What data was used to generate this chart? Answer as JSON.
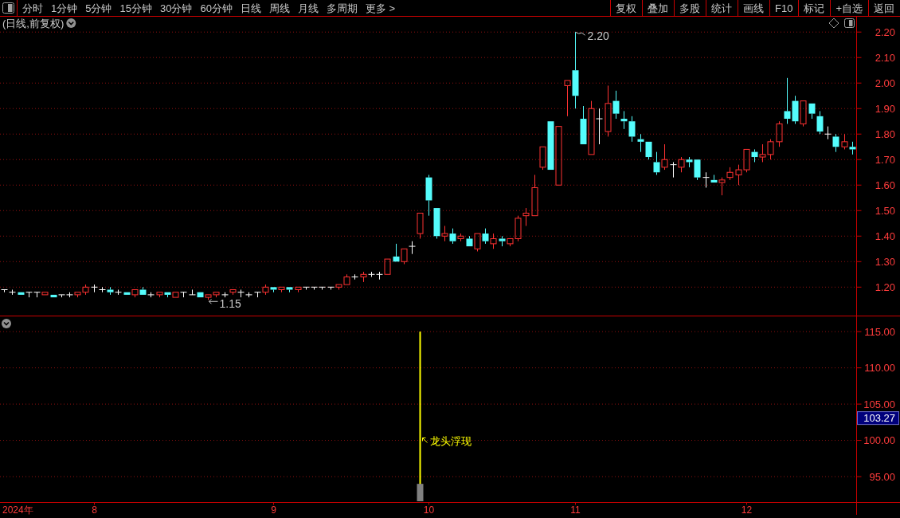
{
  "chart_data": [
    {
      "type": "other",
      "annotations": [
        "分时",
        "1分钟",
        "5分钟",
        "15分钟",
        "30分钟",
        "60分钟",
        "日线",
        "周线",
        "月线",
        "多周期",
        "更多 >"
      ]
    },
    {
      "type": "other",
      "annotations": [
        "复权",
        "叠加",
        "多股",
        "统计",
        "画线",
        "F10",
        "标记",
        "+自选",
        "返回"
      ]
    },
    {
      "type": "candlestick",
      "title": "(日线,前复权)",
      "categories": [
        null,
        null,
        null,
        null,
        null,
        null,
        null,
        null,
        null,
        null,
        null,
        "8",
        null,
        null,
        null,
        null,
        null,
        null,
        null,
        null,
        null,
        null,
        null,
        null,
        null,
        null,
        null,
        null,
        null,
        null,
        null,
        null,
        null,
        "9",
        null,
        null,
        null,
        null,
        null,
        null,
        null,
        null,
        null,
        null,
        null,
        null,
        null,
        null,
        null,
        null,
        null,
        null,
        "10",
        null,
        null,
        null,
        null,
        null,
        null,
        null,
        null,
        null,
        null,
        null,
        null,
        null,
        null,
        null,
        null,
        null,
        "11",
        null,
        null,
        null,
        null,
        null,
        null,
        null,
        null,
        null,
        null,
        null,
        null,
        null,
        null,
        null,
        null,
        null,
        null,
        null,
        null,
        "12",
        null,
        null,
        null,
        null,
        null,
        null,
        null,
        null,
        null,
        null,
        null,
        null,
        null
      ],
      "ohlc": [
        [
          1.19,
          1.19,
          1.18,
          1.19
        ],
        [
          1.18,
          1.19,
          1.17,
          1.18
        ],
        [
          1.18,
          1.18,
          1.17,
          1.17
        ],
        [
          1.18,
          1.18,
          1.16,
          1.18
        ],
        [
          1.18,
          1.18,
          1.16,
          1.18
        ],
        [
          1.17,
          1.18,
          1.17,
          1.18
        ],
        [
          1.17,
          1.17,
          1.16,
          1.16
        ],
        [
          1.17,
          1.17,
          1.16,
          1.17
        ],
        [
          1.17,
          1.18,
          1.16,
          1.17
        ],
        [
          1.17,
          1.18,
          1.16,
          1.18
        ],
        [
          1.18,
          1.21,
          1.17,
          1.2
        ],
        [
          1.2,
          1.21,
          1.18,
          1.2
        ],
        [
          1.19,
          1.2,
          1.18,
          1.19
        ],
        [
          1.19,
          1.2,
          1.17,
          1.18
        ],
        [
          1.18,
          1.19,
          1.17,
          1.18
        ],
        [
          1.18,
          1.18,
          1.17,
          1.17
        ],
        [
          1.17,
          1.19,
          1.16,
          1.19
        ],
        [
          1.19,
          1.2,
          1.17,
          1.17
        ],
        [
          1.17,
          1.18,
          1.16,
          1.17
        ],
        [
          1.17,
          1.18,
          1.16,
          1.18
        ],
        [
          1.18,
          1.18,
          1.16,
          1.17
        ],
        [
          1.16,
          1.18,
          1.16,
          1.18
        ],
        [
          1.18,
          1.18,
          1.16,
          1.18
        ],
        [
          1.17,
          1.19,
          1.17,
          1.17
        ],
        [
          1.18,
          1.18,
          1.16,
          1.16
        ],
        [
          1.16,
          1.17,
          1.15,
          1.17
        ],
        [
          1.17,
          1.18,
          1.16,
          1.18
        ],
        [
          1.17,
          1.18,
          1.16,
          1.17
        ],
        [
          1.18,
          1.19,
          1.17,
          1.19
        ],
        [
          1.18,
          1.19,
          1.16,
          1.18
        ],
        [
          1.17,
          1.18,
          1.16,
          1.17
        ],
        [
          1.18,
          1.18,
          1.16,
          1.18
        ],
        [
          1.18,
          1.21,
          1.17,
          1.2
        ],
        [
          1.2,
          1.2,
          1.18,
          1.19
        ],
        [
          1.19,
          1.2,
          1.18,
          1.2
        ],
        [
          1.2,
          1.2,
          1.18,
          1.19
        ],
        [
          1.19,
          1.2,
          1.18,
          1.2
        ],
        [
          1.2,
          1.2,
          1.19,
          1.2
        ],
        [
          1.2,
          1.2,
          1.19,
          1.2
        ],
        [
          1.2,
          1.2,
          1.19,
          1.2
        ],
        [
          1.2,
          1.2,
          1.19,
          1.2
        ],
        [
          1.2,
          1.21,
          1.19,
          1.21
        ],
        [
          1.21,
          1.25,
          1.21,
          1.24
        ],
        [
          1.24,
          1.25,
          1.23,
          1.24
        ],
        [
          1.24,
          1.26,
          1.22,
          1.25
        ],
        [
          1.25,
          1.26,
          1.24,
          1.25
        ],
        [
          1.25,
          1.26,
          1.23,
          1.25
        ],
        [
          1.25,
          1.31,
          1.25,
          1.31
        ],
        [
          1.32,
          1.37,
          1.3,
          1.3
        ],
        [
          1.3,
          1.35,
          1.29,
          1.35
        ],
        [
          1.36,
          1.38,
          1.33,
          1.36
        ],
        [
          1.41,
          1.49,
          1.39,
          1.49
        ],
        [
          1.63,
          1.64,
          1.48,
          1.54
        ],
        [
          1.51,
          1.51,
          1.39,
          1.4
        ],
        [
          1.4,
          1.44,
          1.38,
          1.41
        ],
        [
          1.41,
          1.43,
          1.37,
          1.38
        ],
        [
          1.39,
          1.41,
          1.38,
          1.4
        ],
        [
          1.39,
          1.4,
          1.36,
          1.36
        ],
        [
          1.35,
          1.41,
          1.34,
          1.41
        ],
        [
          1.41,
          1.43,
          1.37,
          1.38
        ],
        [
          1.37,
          1.41,
          1.35,
          1.39
        ],
        [
          1.39,
          1.4,
          1.36,
          1.38
        ],
        [
          1.37,
          1.39,
          1.36,
          1.39
        ],
        [
          1.39,
          1.48,
          1.38,
          1.47
        ],
        [
          1.48,
          1.51,
          1.44,
          1.49
        ],
        [
          1.48,
          1.64,
          1.48,
          1.59
        ],
        [
          1.67,
          1.75,
          1.66,
          1.75
        ],
        [
          1.85,
          1.85,
          1.66,
          1.66
        ],
        [
          1.6,
          1.83,
          1.6,
          1.83
        ],
        [
          1.99,
          2.01,
          1.87,
          2.01
        ],
        [
          2.05,
          2.2,
          1.9,
          1.95
        ],
        [
          1.86,
          1.91,
          1.76,
          1.76
        ],
        [
          1.72,
          1.93,
          1.72,
          1.9
        ],
        [
          1.86,
          1.9,
          1.76,
          1.86
        ],
        [
          1.81,
          1.99,
          1.79,
          1.92
        ],
        [
          1.93,
          1.97,
          1.86,
          1.88
        ],
        [
          1.86,
          1.89,
          1.82,
          1.85
        ],
        [
          1.85,
          1.87,
          1.77,
          1.79
        ],
        [
          1.78,
          1.8,
          1.73,
          1.77
        ],
        [
          1.77,
          1.77,
          1.7,
          1.71
        ],
        [
          1.69,
          1.73,
          1.64,
          1.65
        ],
        [
          1.67,
          1.76,
          1.66,
          1.7
        ],
        [
          1.68,
          1.69,
          1.63,
          1.68
        ],
        [
          1.67,
          1.71,
          1.65,
          1.7
        ],
        [
          1.7,
          1.71,
          1.67,
          1.69
        ],
        [
          1.7,
          1.7,
          1.62,
          1.63
        ],
        [
          1.63,
          1.65,
          1.59,
          1.63
        ],
        [
          1.62,
          1.64,
          1.61,
          1.61
        ],
        [
          1.61,
          1.63,
          1.56,
          1.62
        ],
        [
          1.63,
          1.67,
          1.62,
          1.65
        ],
        [
          1.64,
          1.68,
          1.6,
          1.66
        ],
        [
          1.66,
          1.74,
          1.65,
          1.74
        ],
        [
          1.73,
          1.74,
          1.69,
          1.71
        ],
        [
          1.71,
          1.76,
          1.69,
          1.72
        ],
        [
          1.72,
          1.78,
          1.7,
          1.77
        ],
        [
          1.77,
          1.85,
          1.75,
          1.84
        ],
        [
          1.89,
          2.02,
          1.84,
          1.86
        ],
        [
          1.93,
          1.95,
          1.84,
          1.85
        ],
        [
          1.84,
          1.93,
          1.83,
          1.93
        ],
        [
          1.92,
          1.92,
          1.86,
          1.88
        ],
        [
          1.87,
          1.89,
          1.8,
          1.81
        ],
        [
          1.8,
          1.83,
          1.78,
          1.8
        ],
        [
          1.79,
          1.8,
          1.73,
          1.75
        ],
        [
          1.75,
          1.8,
          1.74,
          1.77
        ],
        [
          1.75,
          1.77,
          1.72,
          1.74
        ]
      ],
      "colors": [
        "#ffffff",
        "#ffffff",
        "#54fcfc",
        "#ffffff",
        "#ffffff",
        "#ff3232",
        "#54fcfc",
        "#ffffff",
        "#ffffff",
        "#ff3232",
        "#ff3232",
        "#ffffff",
        "#ffffff",
        "#54fcfc",
        "#ffffff",
        "#54fcfc",
        "#ff3232",
        "#54fcfc",
        "#ffffff",
        "#ff3232",
        "#54fcfc",
        "#ff3232",
        "#ffffff",
        "#ffffff",
        "#54fcfc",
        "#ff3232",
        "#ff3232",
        "#ffffff",
        "#ff3232",
        "#ffffff",
        "#ffffff",
        "#ffffff",
        "#ff3232",
        "#54fcfc",
        "#ff3232",
        "#54fcfc",
        "#ff3232",
        "#ffffff",
        "#ffffff",
        "#ffffff",
        "#ffffff",
        "#ff3232",
        "#ff3232",
        "#ffffff",
        "#ff3232",
        "#ffffff",
        "#ffffff",
        "#ff3232",
        "#54fcfc",
        "#ff3232",
        "#ffffff",
        "#ff3232",
        "#54fcfc",
        "#54fcfc",
        "#ff3232",
        "#54fcfc",
        "#ff3232",
        "#54fcfc",
        "#ff3232",
        "#54fcfc",
        "#ff3232",
        "#54fcfc",
        "#ff3232",
        "#ff3232",
        "#ff3232",
        "#ff3232",
        "#ff3232",
        "#54fcfc",
        "#ff3232",
        "#ff3232",
        "#54fcfc",
        "#54fcfc",
        "#ff3232",
        "#ffffff",
        "#ff3232",
        "#54fcfc",
        "#54fcfc",
        "#54fcfc",
        "#54fcfc",
        "#54fcfc",
        "#54fcfc",
        "#ff3232",
        "#ffffff",
        "#ff3232",
        "#54fcfc",
        "#54fcfc",
        "#ffffff",
        "#54fcfc",
        "#ff3232",
        "#ff3232",
        "#ff3232",
        "#ff3232",
        "#54fcfc",
        "#ff3232",
        "#ff3232",
        "#ff3232",
        "#54fcfc",
        "#54fcfc",
        "#ff3232",
        "#54fcfc",
        "#54fcfc",
        "#ffffff",
        "#54fcfc",
        "#ff3232",
        "#54fcfc"
      ],
      "ylim": [
        1.09,
        2.26
      ],
      "yticks": [
        {
          "value": 1.2,
          "label": "1.20"
        },
        {
          "value": 1.3,
          "label": "1.30"
        },
        {
          "value": 1.4,
          "label": "1.40"
        },
        {
          "value": 1.5,
          "label": "1.50"
        },
        {
          "value": 1.6,
          "label": "1.60"
        },
        {
          "value": 1.7,
          "label": "1.70"
        },
        {
          "value": 1.8,
          "label": "1.80"
        },
        {
          "value": 1.9,
          "label": "1.90"
        },
        {
          "value": 2.0,
          "label": "2.00"
        },
        {
          "value": 2.1,
          "label": "2.10"
        },
        {
          "value": 2.2,
          "label": "2.20"
        }
      ],
      "grid": "y",
      "tick_labels": "y",
      "annotations": [
        "2.20",
        "1.15"
      ]
    },
    {
      "type": "bar",
      "xlabel": "2024年",
      "categories": [
        null,
        null,
        null,
        null,
        null,
        null,
        null,
        null,
        null,
        null,
        null,
        "8",
        null,
        null,
        null,
        null,
        null,
        null,
        null,
        null,
        null,
        null,
        null,
        null,
        null,
        null,
        null,
        null,
        null,
        null,
        null,
        null,
        null,
        "9",
        null,
        null,
        null,
        null,
        null,
        null,
        null,
        null,
        null,
        null,
        null,
        null,
        null,
        null,
        null,
        null,
        null,
        null,
        "10",
        null,
        null,
        null,
        null,
        null,
        null,
        null,
        null,
        null,
        null,
        null,
        null,
        null,
        null,
        null,
        null,
        null,
        "11",
        null,
        null,
        null,
        null,
        null,
        null,
        null,
        null,
        null,
        null,
        null,
        null,
        null,
        null,
        null,
        null,
        null,
        null,
        null,
        null,
        "12",
        null,
        null,
        null,
        null,
        null,
        null,
        null,
        null,
        null,
        null,
        null,
        null,
        null
      ],
      "series": [
        {
          "color": "#ffff00",
          "line_style": "solid",
          "values": [
            null,
            null,
            null,
            null,
            null,
            null,
            null,
            null,
            null,
            null,
            null,
            null,
            null,
            null,
            null,
            null,
            null,
            null,
            null,
            null,
            null,
            null,
            null,
            null,
            null,
            null,
            null,
            null,
            null,
            null,
            null,
            null,
            null,
            null,
            null,
            null,
            null,
            null,
            null,
            null,
            null,
            null,
            null,
            null,
            null,
            null,
            null,
            null,
            null,
            null,
            null,
            115,
            null,
            null,
            null,
            null,
            null,
            null,
            null,
            null,
            null,
            null,
            null,
            null,
            null,
            null,
            null,
            null,
            null,
            null,
            null,
            null,
            null,
            null,
            null,
            null,
            null,
            null,
            null,
            null,
            null,
            null,
            null,
            null,
            null,
            null,
            null,
            null,
            null,
            null,
            null,
            null,
            null,
            null,
            null,
            null,
            null,
            null,
            null,
            null,
            null,
            null,
            null,
            null,
            null
          ]
        },
        {
          "color": "#808080",
          "values": [
            null,
            null,
            null,
            null,
            null,
            null,
            null,
            null,
            null,
            null,
            null,
            null,
            null,
            null,
            null,
            null,
            null,
            null,
            null,
            null,
            null,
            null,
            null,
            null,
            null,
            null,
            null,
            null,
            null,
            null,
            null,
            null,
            null,
            null,
            null,
            null,
            null,
            null,
            null,
            null,
            null,
            null,
            null,
            null,
            null,
            null,
            null,
            null,
            null,
            null,
            null,
            94,
            null,
            null,
            null,
            null,
            null,
            null,
            null,
            null,
            null,
            null,
            null,
            null,
            null,
            null,
            null,
            null,
            null,
            null,
            null,
            null,
            null,
            null,
            null,
            null,
            null,
            null,
            null,
            null,
            null,
            null,
            null,
            null,
            null,
            null,
            null,
            null,
            null,
            null,
            null,
            null,
            null,
            null,
            null,
            null,
            null,
            null,
            null,
            null,
            null,
            null,
            null,
            null,
            null
          ]
        }
      ],
      "ylim": [
        91.6,
        117.1
      ],
      "yticks": [
        {
          "value": 95,
          "label": "95.00"
        },
        {
          "value": 100,
          "label": "100.00"
        },
        {
          "value": 105,
          "label": "105.00"
        },
        {
          "value": 110,
          "label": "110.00"
        },
        {
          "value": 115,
          "label": "115.00"
        }
      ],
      "grid": "y",
      "annotations": [
        "龙头浮现",
        "103.27"
      ]
    }
  ]
}
